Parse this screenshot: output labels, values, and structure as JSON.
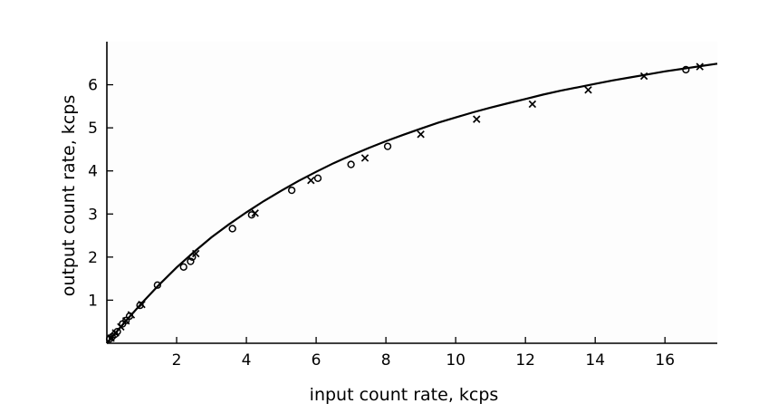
{
  "chart_data": {
    "type": "scatter",
    "title": "",
    "xlabel": "input count rate, kcps",
    "ylabel": "output count rate, kcps",
    "xlim": [
      0,
      17.5
    ],
    "ylim": [
      0,
      7.0
    ],
    "xticks": [
      2,
      4,
      6,
      8,
      10,
      12,
      14,
      16
    ],
    "yticks": [
      1,
      2,
      3,
      4,
      5,
      6
    ],
    "grid": false,
    "legend": "none",
    "colors": {
      "marks": "#000000",
      "plot_background": "#fdfdfd"
    },
    "fit_curve": {
      "x": [
        0,
        0.5,
        1,
        1.5,
        2,
        2.5,
        3,
        3.5,
        4,
        4.5,
        5,
        5.5,
        6,
        6.5,
        7,
        7.5,
        8,
        8.5,
        9,
        9.5,
        10,
        10.5,
        11,
        11.5,
        12,
        12.5,
        13,
        13.5,
        14,
        14.5,
        15,
        15.5,
        16,
        16.5,
        17,
        17.5
      ],
      "y": [
        0,
        0.48,
        0.93,
        1.36,
        1.76,
        2.12,
        2.46,
        2.76,
        3.04,
        3.3,
        3.54,
        3.77,
        3.98,
        4.18,
        4.36,
        4.53,
        4.69,
        4.84,
        4.98,
        5.12,
        5.24,
        5.36,
        5.47,
        5.57,
        5.67,
        5.77,
        5.86,
        5.94,
        6.02,
        6.1,
        6.17,
        6.24,
        6.31,
        6.37,
        6.43,
        6.49
      ]
    },
    "series": [
      {
        "marker": "circle",
        "x": [
          0.08,
          0.15,
          0.22,
          0.3,
          0.45,
          0.55,
          0.65,
          0.95,
          1.45,
          2.2,
          2.4,
          2.45,
          3.6,
          4.15,
          5.3,
          6.05,
          7.0,
          8.05,
          16.6
        ],
        "y": [
          0.1,
          0.15,
          0.2,
          0.27,
          0.45,
          0.53,
          0.63,
          0.88,
          1.35,
          1.77,
          1.9,
          2.0,
          2.66,
          2.98,
          3.55,
          3.83,
          4.15,
          4.57,
          6.35
        ]
      },
      {
        "marker": "cross",
        "x": [
          0.12,
          0.25,
          0.4,
          0.55,
          0.7,
          1.0,
          2.55,
          4.25,
          5.85,
          7.4,
          9.0,
          10.6,
          12.2,
          13.8,
          15.4,
          17.0
        ],
        "y": [
          0.12,
          0.24,
          0.38,
          0.52,
          0.66,
          0.9,
          2.08,
          3.02,
          3.78,
          4.3,
          4.85,
          5.2,
          5.55,
          5.88,
          6.2,
          6.42
        ]
      }
    ]
  }
}
